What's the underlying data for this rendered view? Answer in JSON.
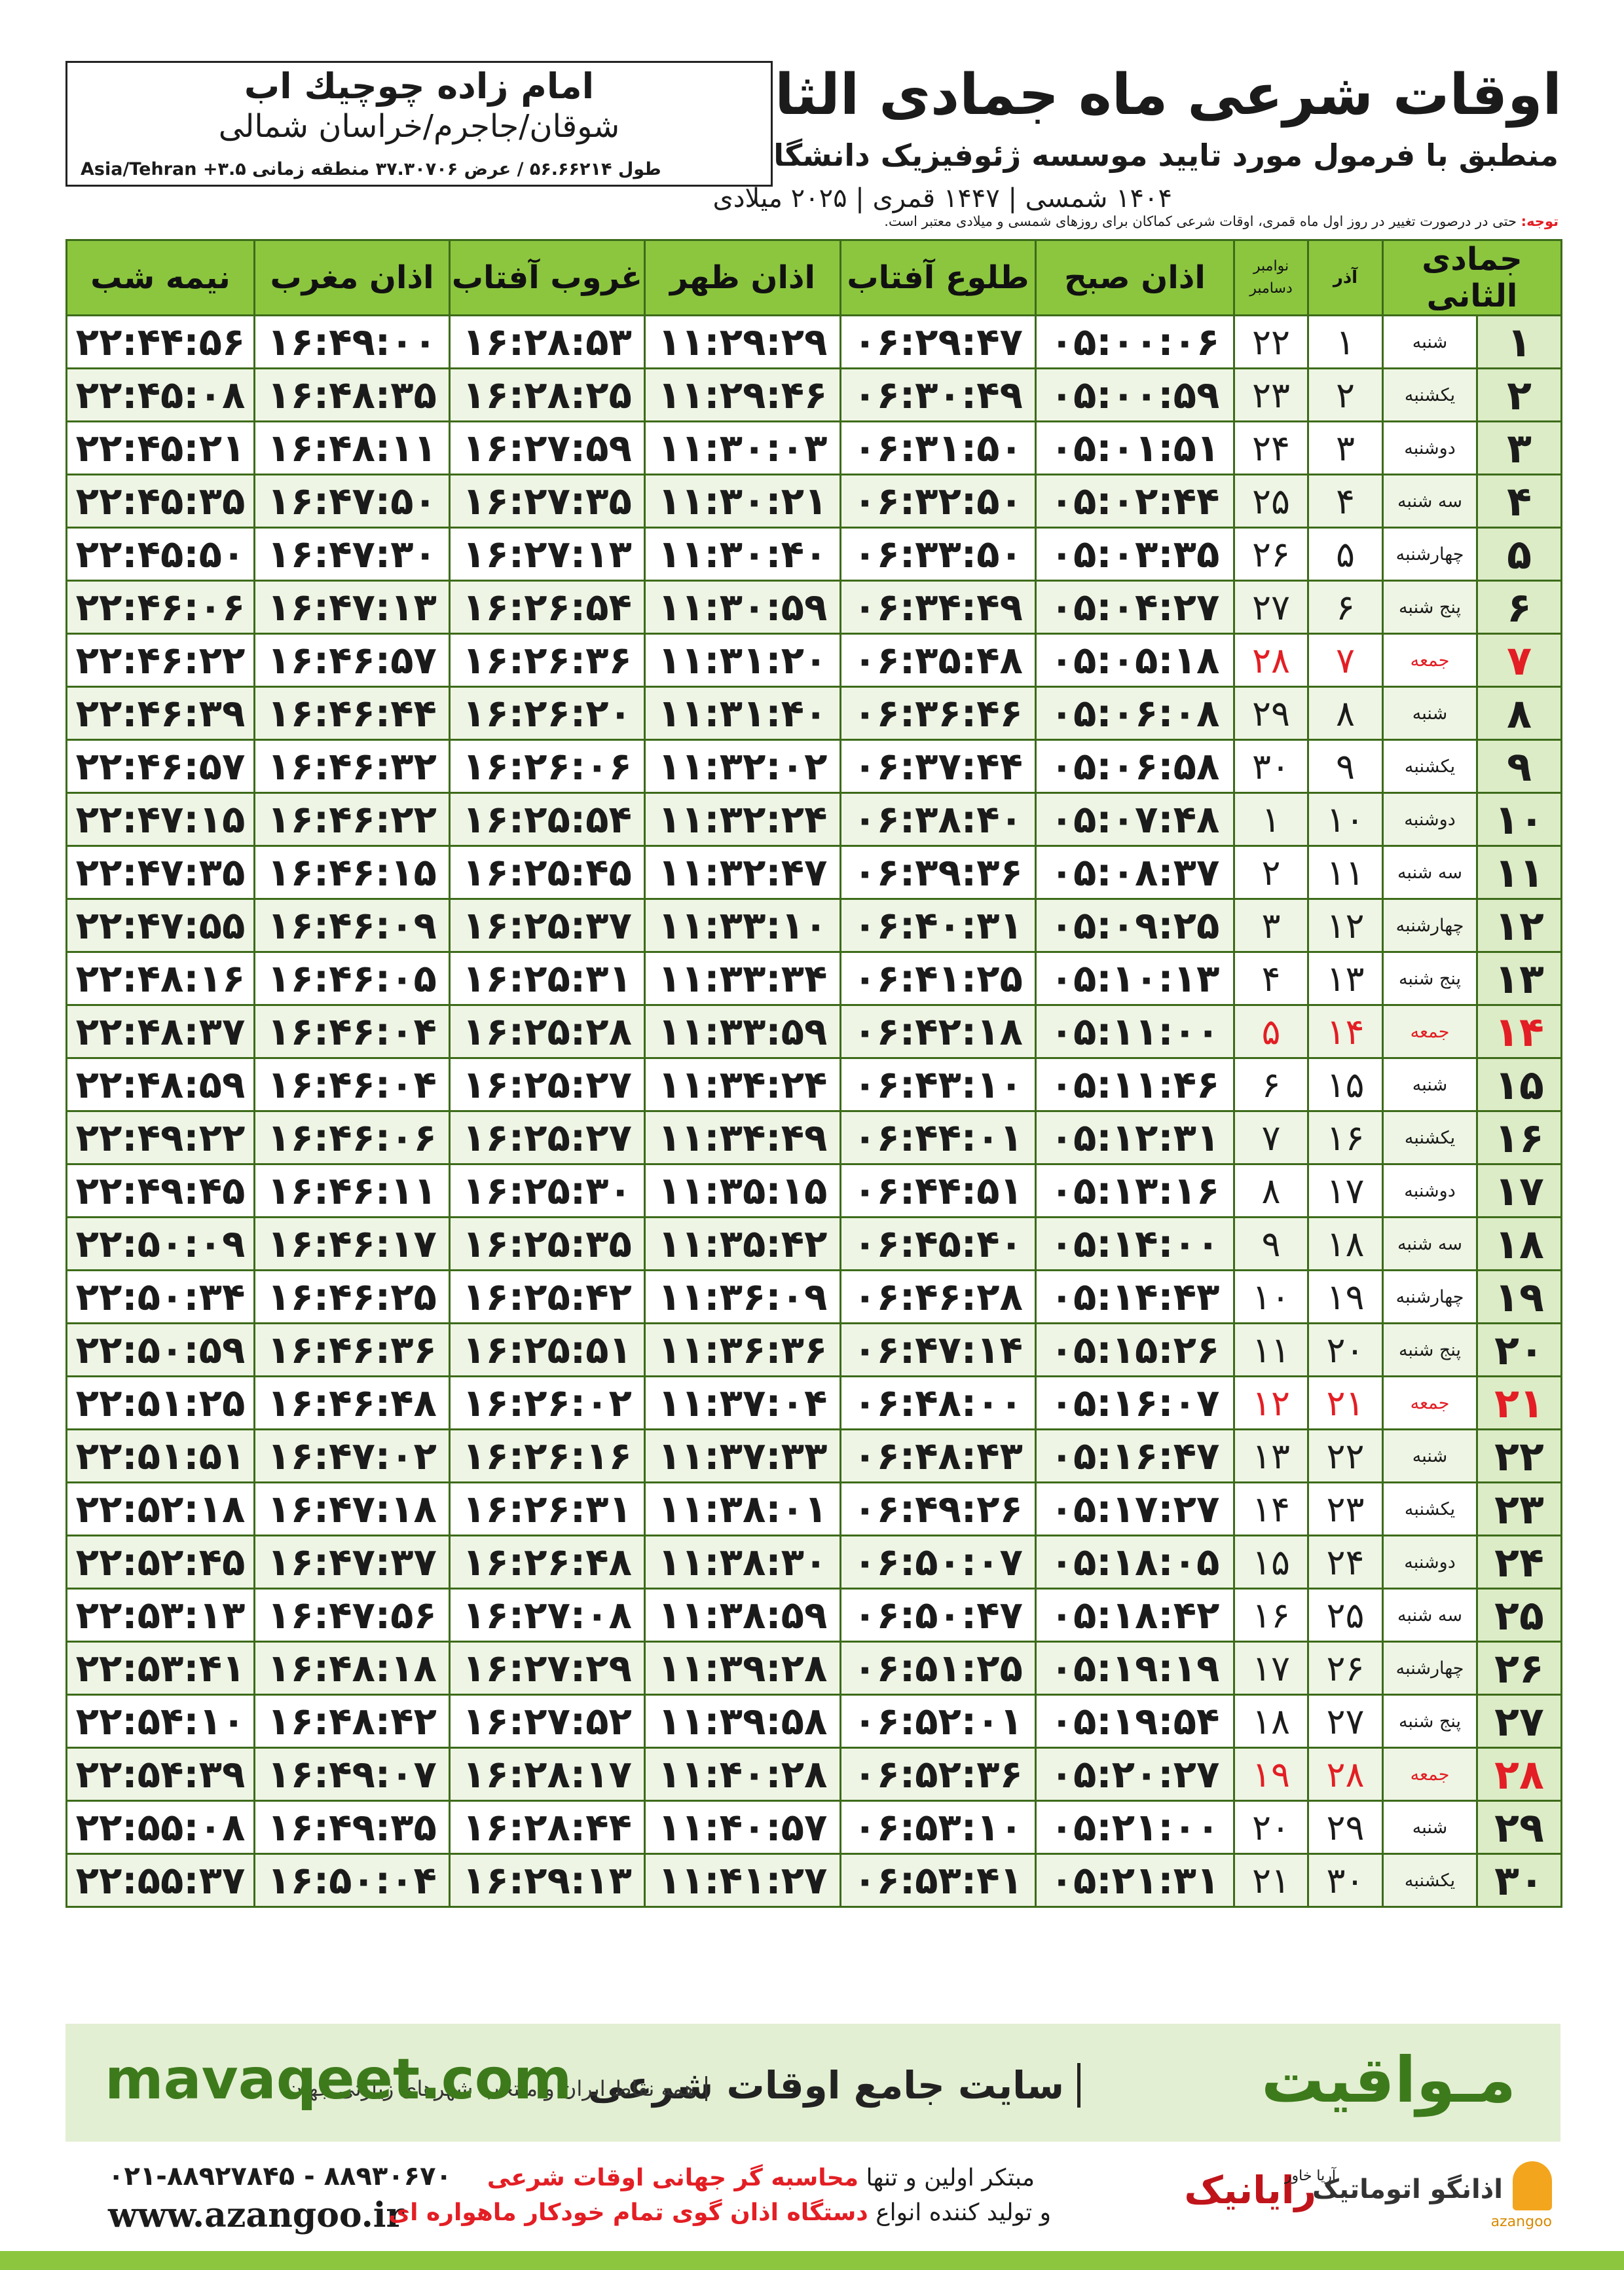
{
  "header": {
    "title": "اوقات شرعی ماه جمادی الثانی",
    "subtitle": "منطبق با فرمول مورد تایید موسسه ژئوفیزیک دانشگاه تهران",
    "dates": "۱۴۰۴ شمسی | ۱۴۴۷ قمری | ۲۰۲۵ میلادی"
  },
  "location": {
    "name": "امام زاده چوچیك اب",
    "region": "شوقان/جاجرم/خراسان شمالی",
    "coords": "طول ۵۶.۶۶۲۱۴ / عرض ۳۷.۳۰۷۰۶ منطقه زمانی ۳.۵+ Asia/Tehran"
  },
  "note": {
    "label": "توجه:",
    "text": "حتی در درصورت تغییر در روز اول ماه قمری، اوقات شرعی کماکان برای روزهای شمسی و میلادی معتبر است."
  },
  "table": {
    "header": [
      "جمادی الثانی",
      "",
      "آذر",
      [
        "نوامبر",
        "دسامبر"
      ],
      "اذان صبح",
      "طلوع آفتاب",
      "اذان ظهر",
      "غروب آفتاب",
      "اذان مغرب",
      "نیمه شب"
    ],
    "rows": [
      [
        "۱",
        "شنبه",
        "۱",
        "۲۲",
        "۰۵:۰۰:۰۶",
        "۰۶:۲۹:۴۷",
        "۱۱:۲۹:۲۹",
        "۱۶:۲۸:۵۳",
        "۱۶:۴۹:۰۰",
        "۲۲:۴۴:۵۶"
      ],
      [
        "۲",
        "یکشنبه",
        "۲",
        "۲۳",
        "۰۵:۰۰:۵۹",
        "۰۶:۳۰:۴۹",
        "۱۱:۲۹:۴۶",
        "۱۶:۲۸:۲۵",
        "۱۶:۴۸:۳۵",
        "۲۲:۴۵:۰۸"
      ],
      [
        "۳",
        "دوشنبه",
        "۳",
        "۲۴",
        "۰۵:۰۱:۵۱",
        "۰۶:۳۱:۵۰",
        "۱۱:۳۰:۰۳",
        "۱۶:۲۷:۵۹",
        "۱۶:۴۸:۱۱",
        "۲۲:۴۵:۲۱"
      ],
      [
        "۴",
        "سه شنبه",
        "۴",
        "۲۵",
        "۰۵:۰۲:۴۴",
        "۰۶:۳۲:۵۰",
        "۱۱:۳۰:۲۱",
        "۱۶:۲۷:۳۵",
        "۱۶:۴۷:۵۰",
        "۲۲:۴۵:۳۵"
      ],
      [
        "۵",
        "چهارشنبه",
        "۵",
        "۲۶",
        "۰۵:۰۳:۳۵",
        "۰۶:۳۳:۵۰",
        "۱۱:۳۰:۴۰",
        "۱۶:۲۷:۱۳",
        "۱۶:۴۷:۳۰",
        "۲۲:۴۵:۵۰"
      ],
      [
        "۶",
        "پنج شنبه",
        "۶",
        "۲۷",
        "۰۵:۰۴:۲۷",
        "۰۶:۳۴:۴۹",
        "۱۱:۳۰:۵۹",
        "۱۶:۲۶:۵۴",
        "۱۶:۴۷:۱۳",
        "۲۲:۴۶:۰۶"
      ],
      [
        "۷",
        "جمعه",
        "۷",
        "۲۸",
        "۰۵:۰۵:۱۸",
        "۰۶:۳۵:۴۸",
        "۱۱:۳۱:۲۰",
        "۱۶:۲۶:۳۶",
        "۱۶:۴۶:۵۷",
        "۲۲:۴۶:۲۲"
      ],
      [
        "۸",
        "شنبه",
        "۸",
        "۲۹",
        "۰۵:۰۶:۰۸",
        "۰۶:۳۶:۴۶",
        "۱۱:۳۱:۴۰",
        "۱۶:۲۶:۲۰",
        "۱۶:۴۶:۴۴",
        "۲۲:۴۶:۳۹"
      ],
      [
        "۹",
        "یکشنبه",
        "۹",
        "۳۰",
        "۰۵:۰۶:۵۸",
        "۰۶:۳۷:۴۴",
        "۱۱:۳۲:۰۲",
        "۱۶:۲۶:۰۶",
        "۱۶:۴۶:۳۲",
        "۲۲:۴۶:۵۷"
      ],
      [
        "۱۰",
        "دوشنبه",
        "۱۰",
        "۱",
        "۰۵:۰۷:۴۸",
        "۰۶:۳۸:۴۰",
        "۱۱:۳۲:۲۴",
        "۱۶:۲۵:۵۴",
        "۱۶:۴۶:۲۲",
        "۲۲:۴۷:۱۵"
      ],
      [
        "۱۱",
        "سه شنبه",
        "۱۱",
        "۲",
        "۰۵:۰۸:۳۷",
        "۰۶:۳۹:۳۶",
        "۱۱:۳۲:۴۷",
        "۱۶:۲۵:۴۵",
        "۱۶:۴۶:۱۵",
        "۲۲:۴۷:۳۵"
      ],
      [
        "۱۲",
        "چهارشنبه",
        "۱۲",
        "۳",
        "۰۵:۰۹:۲۵",
        "۰۶:۴۰:۳۱",
        "۱۱:۳۳:۱۰",
        "۱۶:۲۵:۳۷",
        "۱۶:۴۶:۰۹",
        "۲۲:۴۷:۵۵"
      ],
      [
        "۱۳",
        "پنج شنبه",
        "۱۳",
        "۴",
        "۰۵:۱۰:۱۳",
        "۰۶:۴۱:۲۵",
        "۱۱:۳۳:۳۴",
        "۱۶:۲۵:۳۱",
        "۱۶:۴۶:۰۵",
        "۲۲:۴۸:۱۶"
      ],
      [
        "۱۴",
        "جمعه",
        "۱۴",
        "۵",
        "۰۵:۱۱:۰۰",
        "۰۶:۴۲:۱۸",
        "۱۱:۳۳:۵۹",
        "۱۶:۲۵:۲۸",
        "۱۶:۴۶:۰۴",
        "۲۲:۴۸:۳۷"
      ],
      [
        "۱۵",
        "شنبه",
        "۱۵",
        "۶",
        "۰۵:۱۱:۴۶",
        "۰۶:۴۳:۱۰",
        "۱۱:۳۴:۲۴",
        "۱۶:۲۵:۲۷",
        "۱۶:۴۶:۰۴",
        "۲۲:۴۸:۵۹"
      ],
      [
        "۱۶",
        "یکشنبه",
        "۱۶",
        "۷",
        "۰۵:۱۲:۳۱",
        "۰۶:۴۴:۰۱",
        "۱۱:۳۴:۴۹",
        "۱۶:۲۵:۲۷",
        "۱۶:۴۶:۰۶",
        "۲۲:۴۹:۲۲"
      ],
      [
        "۱۷",
        "دوشنبه",
        "۱۷",
        "۸",
        "۰۵:۱۳:۱۶",
        "۰۶:۴۴:۵۱",
        "۱۱:۳۵:۱۵",
        "۱۶:۲۵:۳۰",
        "۱۶:۴۶:۱۱",
        "۲۲:۴۹:۴۵"
      ],
      [
        "۱۸",
        "سه شنبه",
        "۱۸",
        "۹",
        "۰۵:۱۴:۰۰",
        "۰۶:۴۵:۴۰",
        "۱۱:۳۵:۴۲",
        "۱۶:۲۵:۳۵",
        "۱۶:۴۶:۱۷",
        "۲۲:۵۰:۰۹"
      ],
      [
        "۱۹",
        "چهارشنبه",
        "۱۹",
        "۱۰",
        "۰۵:۱۴:۴۳",
        "۰۶:۴۶:۲۸",
        "۱۱:۳۶:۰۹",
        "۱۶:۲۵:۴۲",
        "۱۶:۴۶:۲۵",
        "۲۲:۵۰:۳۴"
      ],
      [
        "۲۰",
        "پنج شنبه",
        "۲۰",
        "۱۱",
        "۰۵:۱۵:۲۶",
        "۰۶:۴۷:۱۴",
        "۱۱:۳۶:۳۶",
        "۱۶:۲۵:۵۱",
        "۱۶:۴۶:۳۶",
        "۲۲:۵۰:۵۹"
      ],
      [
        "۲۱",
        "جمعه",
        "۲۱",
        "۱۲",
        "۰۵:۱۶:۰۷",
        "۰۶:۴۸:۰۰",
        "۱۱:۳۷:۰۴",
        "۱۶:۲۶:۰۲",
        "۱۶:۴۶:۴۸",
        "۲۲:۵۱:۲۵"
      ],
      [
        "۲۲",
        "شنبه",
        "۲۲",
        "۱۳",
        "۰۵:۱۶:۴۷",
        "۰۶:۴۸:۴۳",
        "۱۱:۳۷:۳۳",
        "۱۶:۲۶:۱۶",
        "۱۶:۴۷:۰۲",
        "۲۲:۵۱:۵۱"
      ],
      [
        "۲۳",
        "یکشنبه",
        "۲۳",
        "۱۴",
        "۰۵:۱۷:۲۷",
        "۰۶:۴۹:۲۶",
        "۱۱:۳۸:۰۱",
        "۱۶:۲۶:۳۱",
        "۱۶:۴۷:۱۸",
        "۲۲:۵۲:۱۸"
      ],
      [
        "۲۴",
        "دوشنبه",
        "۲۴",
        "۱۵",
        "۰۵:۱۸:۰۵",
        "۰۶:۵۰:۰۷",
        "۱۱:۳۸:۳۰",
        "۱۶:۲۶:۴۸",
        "۱۶:۴۷:۳۷",
        "۲۲:۵۲:۴۵"
      ],
      [
        "۲۵",
        "سه شنبه",
        "۲۵",
        "۱۶",
        "۰۵:۱۸:۴۲",
        "۰۶:۵۰:۴۷",
        "۱۱:۳۸:۵۹",
        "۱۶:۲۷:۰۸",
        "۱۶:۴۷:۵۶",
        "۲۲:۵۳:۱۳"
      ],
      [
        "۲۶",
        "چهارشنبه",
        "۲۶",
        "۱۷",
        "۰۵:۱۹:۱۹",
        "۰۶:۵۱:۲۵",
        "۱۱:۳۹:۲۸",
        "۱۶:۲۷:۲۹",
        "۱۶:۴۸:۱۸",
        "۲۲:۵۳:۴۱"
      ],
      [
        "۲۷",
        "پنج شنبه",
        "۲۷",
        "۱۸",
        "۰۵:۱۹:۵۴",
        "۰۶:۵۲:۰۱",
        "۱۱:۳۹:۵۸",
        "۱۶:۲۷:۵۲",
        "۱۶:۴۸:۴۲",
        "۲۲:۵۴:۱۰"
      ],
      [
        "۲۸",
        "جمعه",
        "۲۸",
        "۱۹",
        "۰۵:۲۰:۲۷",
        "۰۶:۵۲:۳۶",
        "۱۱:۴۰:۲۸",
        "۱۶:۲۸:۱۷",
        "۱۶:۴۹:۰۷",
        "۲۲:۵۴:۳۹"
      ],
      [
        "۲۹",
        "شنبه",
        "۲۹",
        "۲۰",
        "۰۵:۲۱:۰۰",
        "۰۶:۵۳:۱۰",
        "۱۱:۴۰:۵۷",
        "۱۶:۲۸:۴۴",
        "۱۶:۴۹:۳۵",
        "۲۲:۵۵:۰۸"
      ],
      [
        "۳۰",
        "یکشنبه",
        "۳۰",
        "۲۱",
        "۰۵:۲۱:۳۱",
        "۰۶:۵۳:۴۱",
        "۱۱:۴۱:۲۷",
        "۱۶:۲۹:۱۳",
        "۱۶:۵۰:۰۴",
        "۲۲:۵۵:۳۷"
      ]
    ]
  },
  "footer": {
    "brand": "مـواقیت",
    "site": "سایت جامع اوقات شرعی",
    "reach": "همه نقاط ایران و منتخب شهرهای زیارتی جهان",
    "url": "mavaqeet.com"
  },
  "contact": {
    "phone": "۰۲۱-۸۸۹۲۷۸۴۵ - ۸۸۹۳۰۶۷۰",
    "web": "www.azangoo.ir",
    "line1a": "مبتکر اولین و تنها",
    "line1b": "محاسبه گر جهانی اوقات شرعی",
    "line2a": "و تولید کننده انواع",
    "line2b": "دستگاه اذان گوی تمام خودکار ماهواره ای"
  },
  "logos": {
    "rayanik": "رایانیک",
    "arya": "آریا خاور",
    "azangoo_fa": "اذانگو اتوماتیک",
    "azangoo_en": "azangoo"
  }
}
